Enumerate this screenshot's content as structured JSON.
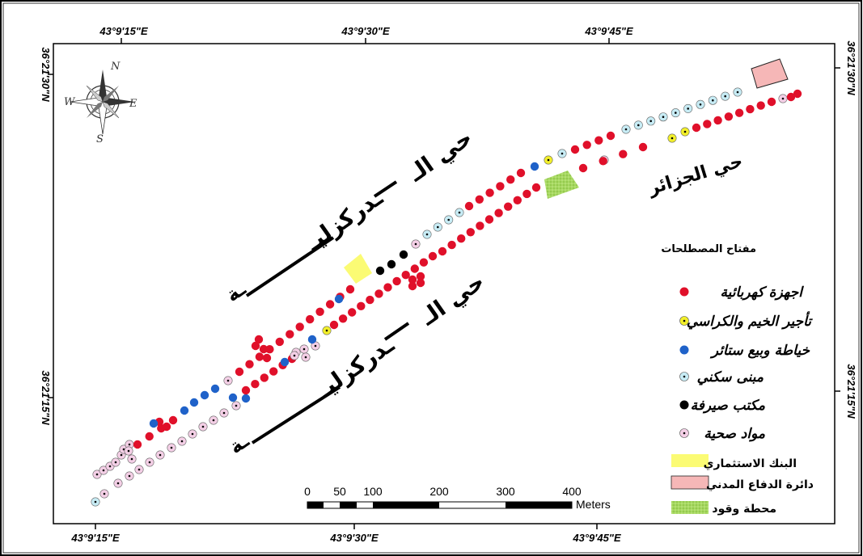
{
  "coordinates": {
    "top": [
      "43°9'15\"E",
      "43°9'30\"E",
      "43°9'45\"E"
    ],
    "bottom": [
      "43°9'15\"E",
      "43°9'30\"E",
      "43°9'45\"E"
    ],
    "left": [
      "36°21'30\"N",
      "36°21'15\"N"
    ],
    "right": [
      "36°21'30\"N",
      "36°21'15\"N"
    ]
  },
  "compass": {
    "n": "N",
    "s": "S",
    "e": "E",
    "w": "W"
  },
  "streets": {
    "upper_name_part1": "حي الـ",
    "upper_name_part2": "ـدركزليـ",
    "upper_name_part3": "ـة",
    "lower_name_part1": "حي الـ",
    "lower_name_part2": "ـدركزليـ",
    "lower_name_part3": "ـة",
    "jazair": "حي الجزائر"
  },
  "legend": {
    "title": "مفتاح المصطلحات",
    "point_items": [
      {
        "label": "اجهزة كهربائية",
        "fill": "#e0102a",
        "dot": false
      },
      {
        "label": "تأجير الخيم والكراسي",
        "fill": "#f2ef2a",
        "dot": true
      },
      {
        "label": "خياطة وبيع ستائر",
        "fill": "#1f62c9",
        "dot": false
      },
      {
        "label": "مبنى سكني",
        "fill": "#c7ecf5",
        "dot": true
      },
      {
        "label": "مكتب صيرفة",
        "fill": "#000000",
        "dot": false
      },
      {
        "label": "مواد صحية",
        "fill": "#f4cfe6",
        "dot": true
      }
    ],
    "area_items": [
      {
        "label": "البنك الاستثماري",
        "fill": "#fbfb74",
        "pattern": false
      },
      {
        "label": "دائرة الدفاع المدني",
        "fill": "#f6b7b7",
        "pattern": false
      },
      {
        "label": "محطة وقود",
        "fill": "#a6d860",
        "pattern": true
      }
    ]
  },
  "scale_bar": {
    "labels": [
      "0",
      "50",
      "100",
      "200",
      "300",
      "400"
    ],
    "unit": "Meters"
  },
  "colors": {
    "electrical": "#e0102a",
    "tents": "#f2ef2a",
    "tailoring": "#1f62c9",
    "residential": "#c7ecf5",
    "exchange": "#000000",
    "sanitary": "#f4cfe6",
    "bank": "#fbfb74",
    "civil_defense": "#f6b7b7",
    "fuel": "#a6d860"
  }
}
